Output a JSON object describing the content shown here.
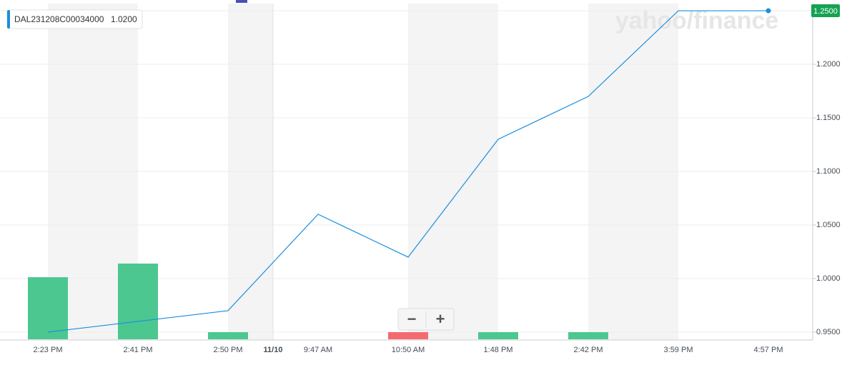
{
  "chart_data": {
    "type": "line",
    "watermark": "yahoo/finance",
    "categories": [
      "2:23 PM",
      "2:41 PM",
      "2:50 PM",
      "9:47 AM",
      "10:50 AM",
      "1:48 PM",
      "2:42 PM",
      "3:59 PM",
      "4:57 PM"
    ],
    "date_divider": "11/10",
    "series": [
      {
        "name": "DAL231208C00034000",
        "color": "#1a8fdd",
        "values": [
          0.95,
          0.96,
          0.97,
          1.06,
          1.02,
          1.13,
          1.17,
          1.25,
          1.25
        ]
      }
    ],
    "legend_value_label": "1.0200",
    "last_value": {
      "value": 1.25,
      "label": "1.2500"
    },
    "volume": {
      "values": [
        820,
        1000,
        94,
        null,
        94,
        94,
        94,
        null,
        null
      ],
      "colors": [
        "#4cc790",
        "#4cc790",
        "#4cc790",
        null,
        "#f46a6f",
        "#4cc790",
        "#4cc790",
        null,
        null
      ]
    },
    "ylim": [
      0.9433,
      1.2567
    ],
    "yticks": [
      {
        "value": 0.95,
        "label": "0.9500"
      },
      {
        "value": 1.0,
        "label": "1.0000"
      },
      {
        "value": 1.05,
        "label": "1.0500"
      },
      {
        "value": 1.1,
        "label": "1.1000"
      },
      {
        "value": 1.15,
        "label": "1.1500"
      },
      {
        "value": 1.2,
        "label": "1.2000"
      }
    ],
    "grid": true,
    "zoom_controls": [
      "−",
      "+"
    ]
  }
}
